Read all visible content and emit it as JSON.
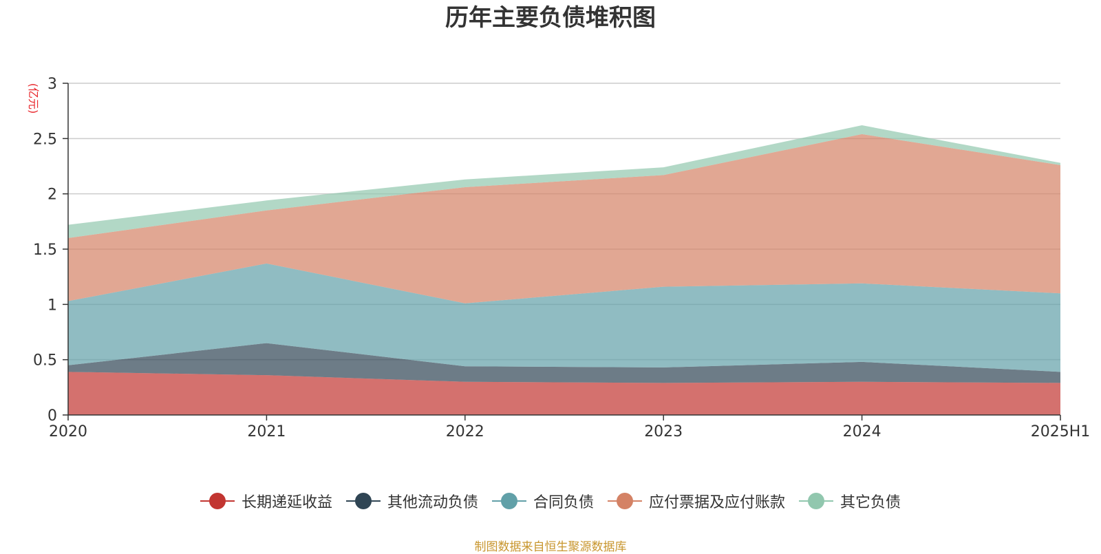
{
  "chart_data": {
    "type": "area",
    "stacked": true,
    "title": "历年主要负债堆积图",
    "ylabel": "(亿元)",
    "xlabel": "",
    "categories": [
      "2020",
      "2021",
      "2022",
      "2023",
      "2024",
      "2025H1"
    ],
    "ylim": [
      0,
      3
    ],
    "yticks": [
      "0",
      "0.5",
      "1",
      "1.5",
      "2",
      "2.5",
      "3"
    ],
    "ytick_values": [
      0,
      0.5,
      1,
      1.5,
      2,
      2.5,
      3
    ],
    "grid": true,
    "legend_position": "bottom",
    "series": [
      {
        "name": "长期递延收益",
        "color": "#c23531",
        "values": [
          0.39,
          0.36,
          0.3,
          0.29,
          0.3,
          0.29
        ]
      },
      {
        "name": "其他流动负债",
        "color": "#2f4554",
        "values": [
          0.06,
          0.29,
          0.14,
          0.14,
          0.18,
          0.1
        ]
      },
      {
        "name": "合同负债",
        "color": "#61a0a8",
        "values": [
          0.58,
          0.72,
          0.57,
          0.73,
          0.71,
          0.71
        ]
      },
      {
        "name": "应付票据及应付账款",
        "color": "#d48265",
        "values": [
          0.57,
          0.48,
          1.05,
          1.01,
          1.35,
          1.16
        ]
      },
      {
        "name": "其它负债",
        "color": "#91c7ae",
        "values": [
          0.12,
          0.09,
          0.07,
          0.07,
          0.08,
          0.02
        ]
      }
    ],
    "source": "制图数据来自恒生聚源数据库"
  }
}
